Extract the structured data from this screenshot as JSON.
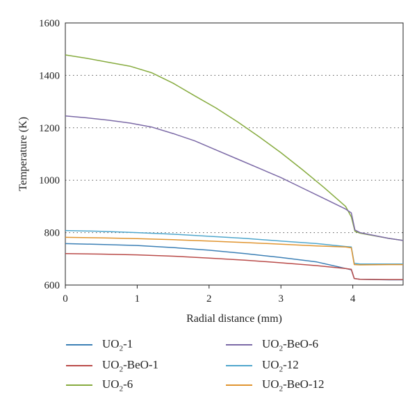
{
  "chart_data": {
    "type": "line",
    "xlabel": "Radial distance (mm)",
    "ylabel": "Temperature (K)",
    "xlim": [
      0,
      4.7
    ],
    "ylim": [
      600,
      1600
    ],
    "xticks": [
      0,
      1,
      2,
      3,
      4
    ],
    "yticks": [
      600,
      800,
      1000,
      1200,
      1400,
      1600
    ],
    "grid": "horizontal dotted",
    "legend_position": "bottom, two columns",
    "series": [
      {
        "name": "UO2-1",
        "label_main": "UO",
        "label_sub": "2",
        "label_rest": "-1",
        "color": "#3b7fb5",
        "x": [
          0,
          0.5,
          1.0,
          1.5,
          2.0,
          2.5,
          3.0,
          3.5,
          3.9,
          3.98,
          4.02,
          4.1,
          4.5,
          4.7
        ],
        "y": [
          758,
          755,
          751,
          743,
          733,
          720,
          705,
          688,
          663,
          658,
          625,
          622,
          620,
          620
        ]
      },
      {
        "name": "UO2-BeO-1",
        "label_main": "UO",
        "label_sub": "2",
        "label_rest": "-BeO-1",
        "color": "#b94a48",
        "x": [
          0,
          0.5,
          1.0,
          1.5,
          2.0,
          2.5,
          3.0,
          3.5,
          3.9,
          3.98,
          4.02,
          4.1,
          4.5,
          4.7
        ],
        "y": [
          720,
          718,
          715,
          710,
          703,
          695,
          685,
          674,
          663,
          660,
          625,
          622,
          621,
          621
        ]
      },
      {
        "name": "UO2-6",
        "label_main": "UO",
        "label_sub": "2",
        "label_rest": "-6",
        "color": "#86ab3e",
        "x": [
          0,
          0.3,
          0.6,
          0.9,
          1.2,
          1.5,
          1.8,
          2.1,
          2.4,
          2.7,
          3.0,
          3.3,
          3.6,
          3.9,
          3.98,
          4.03,
          4.1,
          4.5,
          4.7
        ],
        "y": [
          1478,
          1465,
          1450,
          1435,
          1410,
          1370,
          1322,
          1275,
          1222,
          1165,
          1105,
          1040,
          972,
          900,
          860,
          805,
          798,
          778,
          770
        ]
      },
      {
        "name": "UO2-BeO-6",
        "label_main": "UO",
        "label_sub": "2",
        "label_rest": "-BeO-6",
        "color": "#7b69a6",
        "x": [
          0,
          0.3,
          0.6,
          0.9,
          1.2,
          1.5,
          1.8,
          2.1,
          2.4,
          2.7,
          3.0,
          3.3,
          3.6,
          3.9,
          3.98,
          4.03,
          4.1,
          4.5,
          4.7
        ],
        "y": [
          1245,
          1238,
          1229,
          1218,
          1203,
          1178,
          1150,
          1115,
          1080,
          1045,
          1010,
          970,
          930,
          890,
          875,
          810,
          800,
          778,
          770
        ]
      },
      {
        "name": "UO2-12",
        "label_main": "UO",
        "label_sub": "2",
        "label_rest": "-12",
        "color": "#4ea6cc",
        "x": [
          0,
          0.5,
          1.0,
          1.5,
          2.0,
          2.5,
          3.0,
          3.5,
          3.9,
          3.98,
          4.02,
          4.1,
          4.5,
          4.7
        ],
        "y": [
          808,
          805,
          800,
          794,
          786,
          778,
          768,
          758,
          747,
          745,
          683,
          680,
          680,
          680
        ]
      },
      {
        "name": "UO2-BeO-12",
        "label_main": "UO",
        "label_sub": "2",
        "label_rest": "-BeO-12",
        "color": "#e0942f",
        "x": [
          0,
          0.5,
          1.0,
          1.5,
          2.0,
          2.5,
          3.0,
          3.5,
          3.9,
          3.98,
          4.02,
          4.1,
          4.5,
          4.7
        ],
        "y": [
          782,
          780,
          777,
          773,
          768,
          762,
          756,
          749,
          745,
          742,
          678,
          677,
          678,
          678
        ]
      }
    ]
  }
}
